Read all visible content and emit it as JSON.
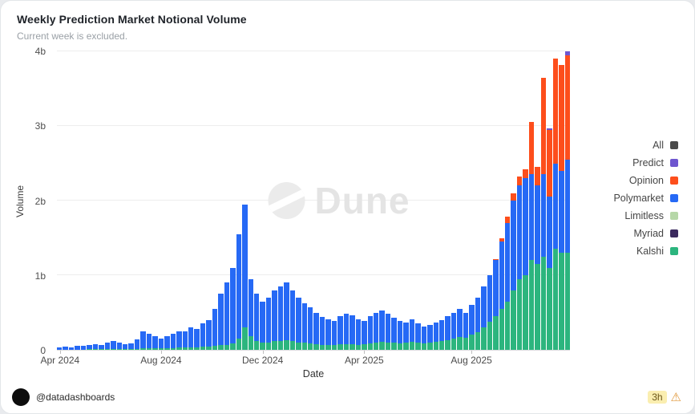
{
  "header": {
    "title": "Weekly Prediction Market Notional Volume",
    "subtitle": "Current week is excluded."
  },
  "watermark": {
    "text": "Dune"
  },
  "footer": {
    "handle": "@datadashboards",
    "freshness": "3h",
    "warning_icon": "⚠"
  },
  "chart_data": {
    "type": "bar",
    "stacked": true,
    "title": "Weekly Prediction Market Notional Volume",
    "subtitle": "Current week is excluded.",
    "xlabel": "Date",
    "ylabel": "Volume",
    "unit": "billions USD",
    "x_unit": "week",
    "ylim": [
      0,
      4
    ],
    "yticks": [
      "0",
      "1b",
      "2b",
      "3b",
      "4b"
    ],
    "xticks": [
      "Apr 2024",
      "Aug 2024",
      "Dec 2024",
      "Apr 2025",
      "Aug 2025"
    ],
    "xtick_positions": [
      0.006,
      0.203,
      0.401,
      0.599,
      0.808
    ],
    "grid": true,
    "legend_position": "right",
    "legend": [
      {
        "name": "All",
        "color": "#4a4a4a"
      },
      {
        "name": "Predict",
        "color": "#6e56cf"
      },
      {
        "name": "Opinion",
        "color": "#fd4e1c"
      },
      {
        "name": "Polymarket",
        "color": "#2669f5"
      },
      {
        "name": "Limitless",
        "color": "#b6d7a8"
      },
      {
        "name": "Myriad",
        "color": "#3b2a5e"
      },
      {
        "name": "Kalshi",
        "color": "#2cb57e"
      }
    ],
    "series": [
      {
        "name": "Kalshi",
        "color": "#2cb57e",
        "values": [
          0,
          0,
          0,
          0,
          0,
          0.01,
          0.01,
          0.01,
          0.01,
          0.01,
          0.01,
          0.01,
          0.01,
          0.01,
          0.02,
          0.02,
          0.02,
          0.02,
          0.02,
          0.02,
          0.03,
          0.03,
          0.03,
          0.03,
          0.04,
          0.04,
          0.05,
          0.06,
          0.07,
          0.09,
          0.15,
          0.3,
          0.18,
          0.12,
          0.1,
          0.1,
          0.12,
          0.12,
          0.13,
          0.12,
          0.1,
          0.1,
          0.09,
          0.08,
          0.07,
          0.07,
          0.07,
          0.08,
          0.08,
          0.08,
          0.07,
          0.08,
          0.09,
          0.1,
          0.11,
          0.1,
          0.1,
          0.09,
          0.1,
          0.11,
          0.1,
          0.09,
          0.1,
          0.11,
          0.12,
          0.13,
          0.15,
          0.17,
          0.16,
          0.2,
          0.24,
          0.3,
          0.38,
          0.45,
          0.55,
          0.65,
          0.8,
          0.95,
          1.0,
          1.2,
          1.15,
          1.25,
          1.1,
          1.35,
          1.3,
          1.3
        ]
      },
      {
        "name": "Polymarket",
        "color": "#2669f5",
        "values": [
          0.03,
          0.04,
          0.03,
          0.05,
          0.05,
          0.06,
          0.07,
          0.06,
          0.09,
          0.11,
          0.09,
          0.07,
          0.08,
          0.13,
          0.23,
          0.2,
          0.16,
          0.13,
          0.16,
          0.2,
          0.22,
          0.22,
          0.27,
          0.25,
          0.31,
          0.36,
          0.5,
          0.69,
          0.83,
          1.01,
          1.4,
          1.65,
          0.77,
          0.63,
          0.55,
          0.6,
          0.68,
          0.73,
          0.77,
          0.68,
          0.6,
          0.52,
          0.48,
          0.42,
          0.37,
          0.34,
          0.32,
          0.37,
          0.4,
          0.38,
          0.34,
          0.31,
          0.36,
          0.4,
          0.42,
          0.38,
          0.33,
          0.3,
          0.27,
          0.3,
          0.25,
          0.22,
          0.23,
          0.26,
          0.28,
          0.32,
          0.35,
          0.38,
          0.34,
          0.4,
          0.46,
          0.55,
          0.62,
          0.75,
          0.9,
          1.05,
          1.2,
          1.25,
          1.3,
          1.15,
          1.05,
          1.1,
          0.95,
          1.15,
          1.1,
          1.25
        ]
      },
      {
        "name": "Opinion",
        "color": "#fd4e1c",
        "values": [
          0,
          0,
          0,
          0,
          0,
          0,
          0,
          0,
          0,
          0,
          0,
          0,
          0,
          0,
          0,
          0,
          0,
          0,
          0,
          0,
          0,
          0,
          0,
          0,
          0,
          0,
          0,
          0,
          0,
          0,
          0,
          0,
          0,
          0,
          0,
          0,
          0,
          0,
          0,
          0,
          0,
          0,
          0,
          0,
          0,
          0,
          0,
          0,
          0,
          0,
          0,
          0,
          0,
          0,
          0,
          0,
          0,
          0,
          0,
          0,
          0,
          0,
          0,
          0,
          0,
          0,
          0,
          0,
          0,
          0,
          0,
          0,
          0,
          0.02,
          0.05,
          0.08,
          0.1,
          0.12,
          0.12,
          0.7,
          0.25,
          1.3,
          0.9,
          1.4,
          1.42,
          1.4
        ]
      },
      {
        "name": "Predict",
        "color": "#6e56cf",
        "values": [
          0,
          0,
          0,
          0,
          0,
          0,
          0,
          0,
          0,
          0,
          0,
          0,
          0,
          0,
          0,
          0,
          0,
          0,
          0,
          0,
          0,
          0,
          0,
          0,
          0,
          0,
          0,
          0,
          0,
          0,
          0,
          0,
          0,
          0,
          0,
          0,
          0,
          0,
          0,
          0,
          0,
          0,
          0,
          0,
          0,
          0,
          0,
          0,
          0,
          0,
          0,
          0,
          0,
          0,
          0,
          0,
          0,
          0,
          0,
          0,
          0,
          0,
          0,
          0,
          0,
          0,
          0,
          0,
          0,
          0,
          0,
          0,
          0,
          0,
          0,
          0,
          0,
          0,
          0,
          0,
          0,
          0,
          0.02,
          0,
          0,
          0.05
        ]
      }
    ]
  }
}
